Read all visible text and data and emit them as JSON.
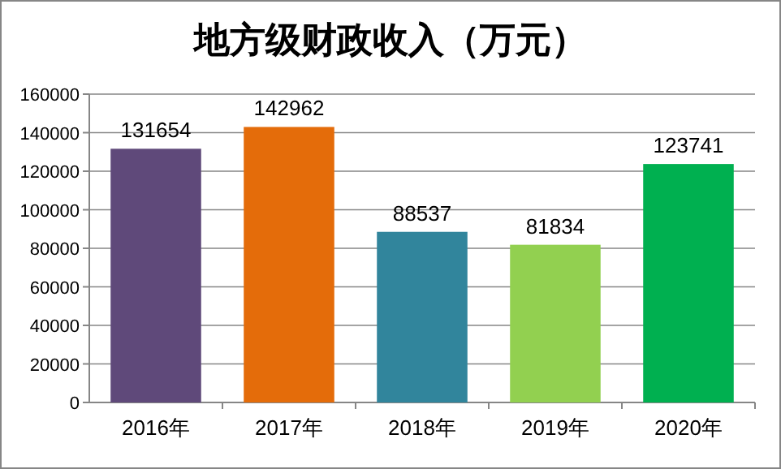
{
  "chart_data": {
    "type": "bar",
    "title": "地方级财政收入（万元）",
    "categories": [
      "2016年",
      "2017年",
      "2018年",
      "2019年",
      "2020年"
    ],
    "values": [
      131654,
      142962,
      88537,
      81834,
      123741
    ],
    "colors": [
      "#5f497a",
      "#e46c0a",
      "#31859c",
      "#92d050",
      "#00b050"
    ],
    "ylim": [
      0,
      160000
    ],
    "yticks": [
      0,
      20000,
      40000,
      60000,
      80000,
      100000,
      120000,
      140000,
      160000
    ],
    "grid": "y",
    "data_labels": true
  }
}
